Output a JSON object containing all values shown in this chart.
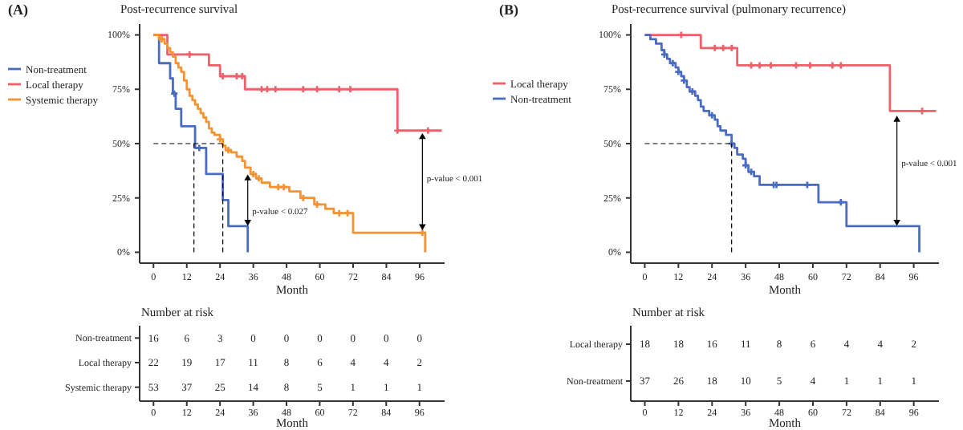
{
  "chart_data": [
    {
      "type": "step",
      "title": "Post-recurrence survival",
      "xlabel": "Month",
      "legend": "left",
      "xlim": [
        -5,
        105
      ],
      "ylim": [
        -5,
        105
      ],
      "xticks": [
        0,
        12,
        24,
        36,
        48,
        60,
        72,
        84,
        96
      ],
      "yticks": [
        {
          "value": 0,
          "label": "0%"
        },
        {
          "value": 25,
          "label": "25%"
        },
        {
          "value": 50,
          "label": "50%"
        },
        {
          "value": 75,
          "label": "75%"
        },
        {
          "value": 100,
          "label": "100%"
        }
      ],
      "annotations": [
        "(A)",
        {
          "text": "p-value < 0.027",
          "x": 35,
          "y": 19
        },
        {
          "text": "p-value < 0.001",
          "x": 98,
          "y": 34
        }
      ],
      "series": [
        {
          "name": "Non-treatment",
          "color": "#4a6cc0",
          "x": [
            0,
            2,
            6,
            7,
            8,
            10,
            15,
            19,
            25,
            27,
            34
          ],
          "values": [
            100,
            87,
            80,
            73,
            66,
            58,
            48,
            36,
            24,
            12,
            0
          ]
        },
        {
          "name": "Local therapy",
          "color": "#f0606a",
          "x": [
            0,
            5,
            20,
            24,
            33,
            88,
            104
          ],
          "values": [
            100,
            91,
            86,
            81,
            75,
            56,
            56
          ]
        },
        {
          "name": "Systemic therapy",
          "color": "#f59232",
          "x": [
            0,
            2,
            4,
            5,
            6,
            7,
            8,
            9,
            10,
            11,
            12,
            13,
            14,
            15,
            16,
            17,
            18,
            19,
            20,
            21,
            22,
            24,
            25,
            26,
            28,
            30,
            32,
            33,
            35,
            37,
            39,
            42,
            49,
            53,
            58,
            62,
            65,
            72,
            98
          ],
          "values": [
            100,
            98,
            96,
            94,
            92,
            90,
            87,
            85,
            83,
            79,
            75,
            72,
            70,
            68,
            66,
            64,
            62,
            60,
            57,
            55,
            54,
            52,
            49,
            47,
            46,
            44,
            42,
            39,
            36,
            34,
            32,
            30,
            28,
            25,
            22,
            20,
            18,
            9,
            0
          ]
        },
        {
          "type": "scatter",
          "marker": "cross",
          "color": "#4a6cc0",
          "x": [
            7.5,
            16.5
          ],
          "values": [
            73,
            48
          ]
        },
        {
          "type": "scatter",
          "marker": "cross",
          "color": "#f0606a",
          "x": [
            13,
            25,
            30,
            32,
            39,
            41,
            44,
            54,
            59,
            67,
            71,
            88,
            99
          ],
          "values": [
            91,
            81,
            81,
            81,
            75,
            75,
            75,
            75,
            75,
            75,
            75,
            56,
            56
          ]
        },
        {
          "type": "scatter",
          "marker": "cross",
          "color": "#f59232",
          "x": [
            3,
            24,
            27,
            36,
            38,
            45,
            47,
            54,
            59,
            67,
            70,
            97
          ],
          "values": [
            98,
            52,
            47,
            36,
            34,
            30,
            30,
            25,
            22,
            18,
            18,
            9
          ]
        },
        {
          "type": "line",
          "line_style": "dashed",
          "color": "#000000",
          "x": [
            0,
            25
          ],
          "values": [
            50,
            50
          ]
        },
        {
          "type": "line",
          "line_style": "dashed",
          "color": "#000000",
          "x": [
            14.6,
            14.6
          ],
          "values": [
            0,
            50
          ]
        },
        {
          "type": "line",
          "line_style": "dashed",
          "color": "#000000",
          "x": [
            25,
            25
          ],
          "values": [
            0,
            50
          ]
        },
        {
          "type": "line",
          "marker": "triangle",
          "color": "#000000",
          "x": [
            34,
            34
          ],
          "values": [
            34,
            14
          ]
        },
        {
          "type": "line",
          "marker": "triangle",
          "color": "#000000",
          "x": [
            97,
            97
          ],
          "values": [
            53,
            12
          ]
        }
      ]
    },
    {
      "type": "heatmap",
      "title": "Number at risk",
      "xlabel": "Month",
      "categories": [
        "0",
        "12",
        "24",
        "36",
        "48",
        "60",
        "72",
        "84",
        "96"
      ],
      "y_categories": [
        "Non-treatment",
        "Local therapy",
        "Systemic therapy"
      ],
      "data_labels": true,
      "cells": [
        [
          16,
          6,
          3,
          0,
          0,
          0,
          0,
          0,
          0
        ],
        [
          22,
          19,
          17,
          11,
          8,
          6,
          4,
          4,
          2
        ],
        [
          53,
          37,
          25,
          14,
          8,
          5,
          1,
          1,
          1
        ]
      ]
    },
    {
      "type": "step",
      "title": "Post-recurrence survival (pulmonary recurrence)",
      "xlabel": "Month",
      "legend": "left",
      "xlim": [
        -5,
        105
      ],
      "ylim": [
        -5,
        105
      ],
      "xticks": [
        0,
        12,
        24,
        36,
        48,
        60,
        72,
        84,
        96
      ],
      "yticks": [
        {
          "value": 0,
          "label": "0%"
        },
        {
          "value": 25,
          "label": "25%"
        },
        {
          "value": 50,
          "label": "50%"
        },
        {
          "value": 75,
          "label": "75%"
        },
        {
          "value": 100,
          "label": "100%"
        }
      ],
      "annotations": [
        "(B)",
        {
          "text": "p-value < 0.001",
          "x": 91,
          "y": 41
        }
      ],
      "series": [
        {
          "name": "Local therapy",
          "color": "#f0606a",
          "x": [
            0,
            20,
            20,
            33,
            33,
            87.5,
            87.5,
            104
          ],
          "values": [
            100,
            100,
            94,
            94,
            86,
            86,
            65,
            65
          ]
        },
        {
          "name": "Non-treatment",
          "color": "#4a6cc0",
          "x": [
            0,
            2,
            4,
            6,
            7,
            8,
            9,
            11,
            12,
            13,
            14,
            15,
            16,
            18,
            19,
            20,
            21,
            23,
            25,
            26,
            27,
            29,
            31,
            32,
            33,
            35,
            36,
            37,
            39,
            41,
            62,
            72,
            98
          ],
          "values": [
            100,
            98,
            96,
            93,
            91,
            89,
            87,
            85,
            83,
            81,
            79,
            76,
            74,
            72,
            70,
            67,
            65,
            63,
            61,
            58,
            56,
            54,
            50,
            48,
            45,
            43,
            40,
            37,
            35,
            31,
            23,
            12,
            0
          ]
        },
        {
          "type": "scatter",
          "marker": "cross",
          "color": "#f0606a",
          "x": [
            13,
            25,
            28,
            31,
            38,
            41,
            45,
            54,
            59,
            67,
            70,
            99
          ],
          "values": [
            100,
            94,
            94,
            94,
            86,
            86,
            86,
            86,
            86,
            86,
            86,
            65
          ]
        },
        {
          "type": "scatter",
          "marker": "cross",
          "color": "#4a6cc0",
          "x": [
            7,
            10,
            12,
            14,
            17,
            24,
            31,
            36,
            38,
            46,
            47,
            58,
            70
          ],
          "values": [
            91,
            87,
            83,
            79,
            74,
            63,
            50,
            40,
            37,
            31,
            31,
            31,
            23
          ]
        },
        {
          "type": "line",
          "line_style": "dashed",
          "color": "#000000",
          "x": [
            0,
            31
          ],
          "values": [
            50,
            50
          ]
        },
        {
          "type": "line",
          "line_style": "dashed",
          "color": "#000000",
          "x": [
            31,
            31
          ],
          "values": [
            0,
            50
          ]
        },
        {
          "type": "line",
          "marker": "triangle",
          "color": "#000000",
          "x": [
            90,
            90
          ],
          "values": [
            61,
            14
          ]
        }
      ]
    },
    {
      "type": "heatmap",
      "title": "Number at risk",
      "xlabel": "Month",
      "categories": [
        "0",
        "12",
        "24",
        "36",
        "48",
        "60",
        "72",
        "84",
        "96"
      ],
      "y_categories": [
        "Local therapy",
        "Non-treatment"
      ],
      "data_labels": true,
      "cells": [
        [
          18,
          18,
          16,
          11,
          8,
          6,
          4,
          4,
          2
        ],
        [
          37,
          26,
          18,
          10,
          5,
          4,
          1,
          1,
          1
        ]
      ]
    }
  ]
}
